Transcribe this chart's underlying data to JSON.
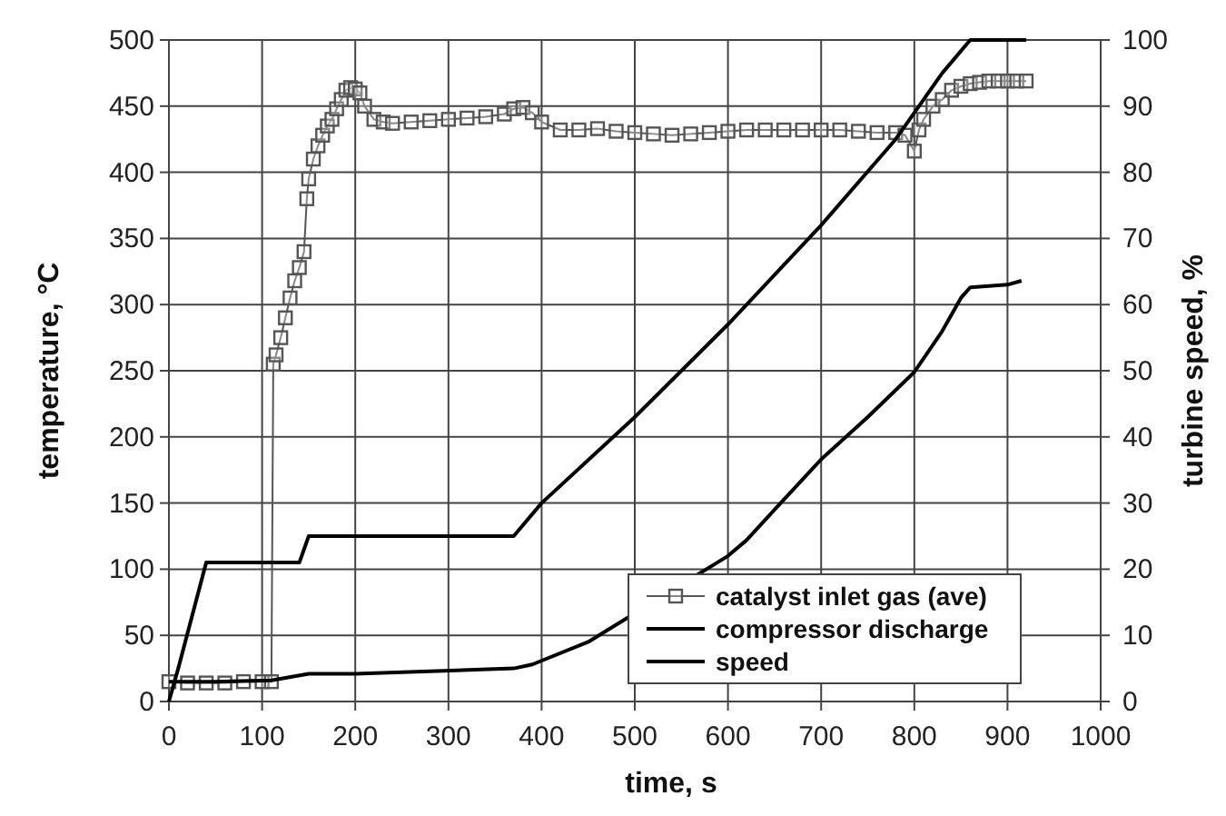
{
  "chart_data": {
    "type": "line",
    "xlabel": "time, s",
    "ylabel": "temperature, °C",
    "y2label": "turbine speed, %",
    "xlim": [
      0,
      1000
    ],
    "xticks": [
      0,
      100,
      200,
      300,
      400,
      500,
      600,
      700,
      800,
      900,
      1000
    ],
    "ylim": [
      0,
      500
    ],
    "yticks": [
      0,
      50,
      100,
      150,
      200,
      250,
      300,
      350,
      400,
      450,
      500
    ],
    "y2lim": [
      0,
      100
    ],
    "y2ticks": [
      0,
      10,
      20,
      30,
      40,
      50,
      60,
      70,
      80,
      90,
      100
    ],
    "grid": true,
    "legend": "bottom right",
    "series": [
      {
        "name": "catalyst inlet gas (ave)",
        "color": "#555555",
        "marker": "square",
        "x": [
          0,
          20,
          40,
          60,
          80,
          100,
          110,
          112,
          115,
          120,
          125,
          130,
          135,
          140,
          145,
          148,
          150,
          155,
          160,
          165,
          170,
          175,
          180,
          185,
          190,
          195,
          200,
          205,
          210,
          220,
          230,
          240,
          260,
          280,
          300,
          320,
          340,
          360,
          370,
          380,
          390,
          400,
          420,
          440,
          460,
          480,
          500,
          520,
          540,
          560,
          580,
          600,
          620,
          640,
          660,
          680,
          700,
          720,
          740,
          760,
          780,
          790,
          800,
          805,
          810,
          820,
          830,
          840,
          850,
          860,
          870,
          880,
          890,
          900,
          910,
          920
        ],
        "values": [
          15,
          14,
          14,
          14,
          15,
          15,
          15,
          255,
          262,
          275,
          290,
          305,
          318,
          328,
          340,
          380,
          395,
          410,
          420,
          428,
          435,
          440,
          448,
          455,
          462,
          464,
          463,
          460,
          450,
          440,
          438,
          437,
          438,
          439,
          440,
          441,
          442,
          444,
          448,
          449,
          445,
          438,
          432,
          432,
          433,
          431,
          430,
          429,
          428,
          429,
          430,
          431,
          432,
          432,
          432,
          432,
          432,
          432,
          431,
          430,
          430,
          428,
          416,
          432,
          440,
          450,
          455,
          462,
          465,
          467,
          468,
          469,
          469,
          469,
          469,
          469
        ]
      },
      {
        "name": "compressor discharge",
        "color": "#000000",
        "marker": "none",
        "x": [
          0,
          50,
          110,
          150,
          200,
          370,
          390,
          450,
          600,
          620,
          650,
          700,
          750,
          800,
          830,
          850,
          860,
          900,
          915
        ],
        "values": [
          15,
          15,
          16,
          21,
          21,
          25,
          28,
          45,
          110,
          122,
          145,
          183,
          215,
          249,
          280,
          305,
          313,
          315,
          318
        ]
      },
      {
        "name": "speed",
        "color": "#000000",
        "marker": "none",
        "axis": "y2",
        "x": [
          0,
          10,
          40,
          100,
          140,
          150,
          370,
          400,
          500,
          600,
          700,
          780,
          800,
          830,
          860,
          920
        ],
        "values": [
          0,
          5,
          21,
          21,
          21,
          25,
          25,
          30,
          43,
          57,
          72,
          85,
          89,
          95,
          100,
          100
        ]
      }
    ]
  }
}
